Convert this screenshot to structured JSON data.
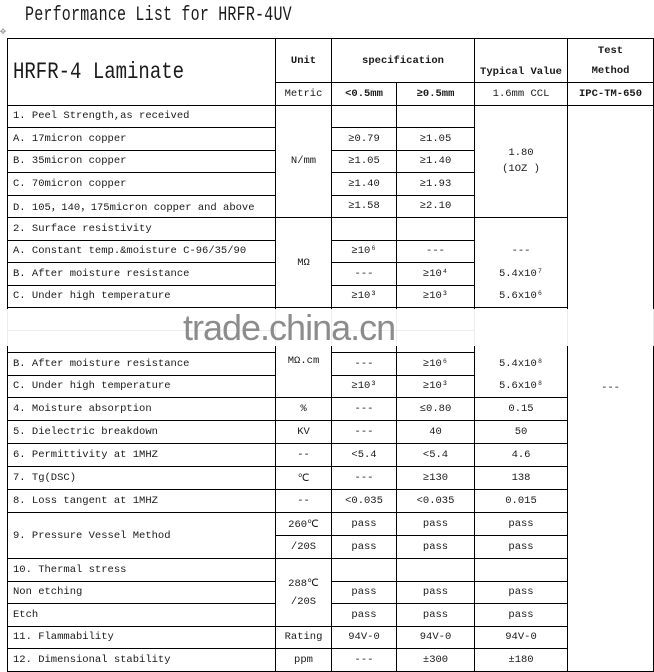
{
  "title": "Performance List for HRFR-4UV",
  "watermark": "trade.china.cn",
  "header": {
    "laminate": "HRFR-4 Laminate",
    "unit": "Unit",
    "specification": "specification",
    "typical": "Typical Value",
    "test_method_1": "Test",
    "test_method_2": "Method",
    "metric": "Metric",
    "spec_lt": "<0.5mm",
    "spec_ge": "≥0.5mm",
    "typical_sub": "1.6mm  CCL",
    "test_sub": "IPC-TM-650"
  },
  "test_method_value": "---",
  "rows": [
    {
      "label": "1. Peel Strength,as received",
      "unit": "N/mm",
      "lt": "",
      "ge": "",
      "typical": "1.80",
      "typical_note": "(1OZ )"
    },
    {
      "label": "A. 17micron copper",
      "lt": "≥0.79",
      "ge": "≥1.05"
    },
    {
      "label": "B. 35micron copper",
      "lt": "≥1.05",
      "ge": "≥1.40"
    },
    {
      "label": "C. 70micron copper",
      "lt": "≥1.40",
      "ge": "≥1.93"
    },
    {
      "label": "D. 105，140，175micron copper and above",
      "lt": "≥1.58",
      "ge": "≥2.10"
    },
    {
      "label": "2.  Surface resistivity",
      "unit": "MΩ",
      "lt": "",
      "ge": "",
      "typical": ""
    },
    {
      "label": "A. Constant temp.&moisture C-96/35/90",
      "lt": "≥10⁶",
      "ge": "---",
      "typical": "---"
    },
    {
      "label": "B. After moisture resistance",
      "lt": "---",
      "ge": "≥10⁴",
      "typical": "5.4x10⁷"
    },
    {
      "label": "C. Under high temperature",
      "lt": "≥10³",
      "ge": "≥10³",
      "typical": "5.6x10⁶"
    },
    {
      "label": "",
      "unit": "MΩ.cm",
      "lt": "",
      "ge": "",
      "typical": ""
    },
    {
      "label": "",
      "lt": "",
      "ge": "",
      "typical": ""
    },
    {
      "label": "B. After moisture resistance",
      "lt": "---",
      "ge": "≥10⁶",
      "typical": "5.4x10⁸"
    },
    {
      "label": "C. Under high temperature",
      "lt": "≥10³",
      "ge": "≥10³",
      "typical": "5.6x10⁸"
    },
    {
      "label": "4. Moisture absorption",
      "unit": "%",
      "lt": "---",
      "ge": "≤0.80",
      "typical": "0.15"
    },
    {
      "label": "5. Dielectric breakdown",
      "unit": "KV",
      "lt": "---",
      "ge": "40",
      "typical": "50"
    },
    {
      "label": "6. Permittivity at 1MHZ",
      "unit": "--",
      "lt": "<5.4",
      "ge": "<5.4",
      "typical": "4.6"
    },
    {
      "label": "7. Tg(DSC)",
      "unit": "℃",
      "lt": "---",
      "ge": "≥130",
      "typical": "138"
    },
    {
      "label": "8. Loss tangent at 1MHZ",
      "unit": "--",
      "lt": "<0.035",
      "ge": "<0.035",
      "typical": "0.015"
    },
    {
      "label": "9. Pressure Vessel Method",
      "unit": "260℃",
      "lt": "pass",
      "ge": "pass",
      "typical": "pass"
    },
    {
      "unit": "/20S",
      "lt": "pass",
      "ge": "pass",
      "typical": "pass"
    },
    {
      "label": "10. Thermal stress",
      "unit": "288℃",
      "unit2": "/20S",
      "lt": "",
      "ge": "",
      "typical": ""
    },
    {
      "label": "Non etching",
      "lt": "pass",
      "ge": "pass",
      "typical": "pass"
    },
    {
      "label": "Etch",
      "lt": "pass",
      "ge": "pass",
      "typical": "pass"
    },
    {
      "label": "11. Flammability",
      "unit": "Rating",
      "lt": "94V-0",
      "ge": "94V-0",
      "typical": "94V-0"
    },
    {
      "label": "12. Dimensional stability",
      "unit": "ppm",
      "lt": "---",
      "ge": "±300",
      "typical": "±180"
    }
  ]
}
